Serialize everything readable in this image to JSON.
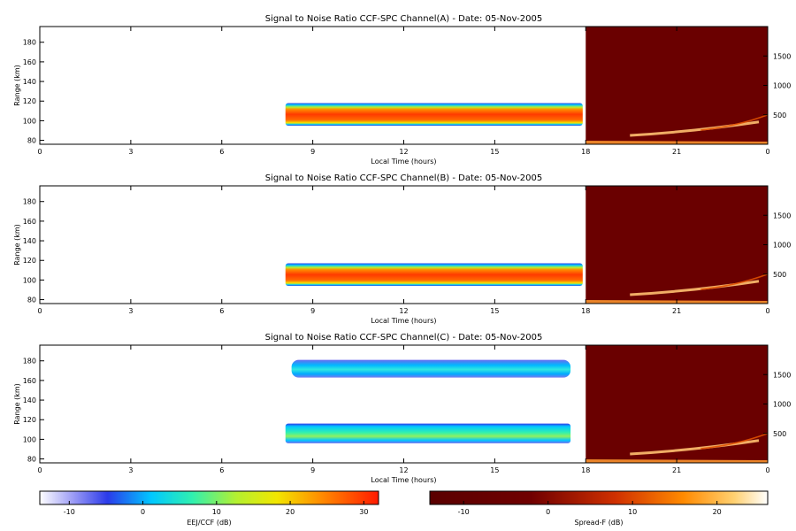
{
  "chart_data": [
    {
      "type": "heatmap",
      "title": "Signal to Noise Ratio CCF-SPC Channel(A) - Date: 05-Nov-2005",
      "xlabel": "Local Time (hours)",
      "ylabel": "Range (km)",
      "xlim": [
        0,
        24
      ],
      "xticks": [
        "0",
        "3",
        "6",
        "9",
        "12",
        "15",
        "18",
        "21",
        "0"
      ],
      "ylim": [
        76,
        196
      ],
      "yticks": [
        80,
        100,
        120,
        140,
        160,
        180
      ],
      "y2ticks": [
        500,
        1000,
        1500
      ],
      "ewj_echo": {
        "start_hour": 8.1,
        "end_hour": 17.9,
        "bottom_km": 95,
        "top_km": 118,
        "peak_snr_db": 25
      },
      "spreadf_panel": {
        "start_hour": 18,
        "end_hour": 24,
        "ylim_km": [
          0,
          2000
        ]
      }
    },
    {
      "type": "heatmap",
      "title": "Signal to Noise Ratio CCF-SPC Channel(B) - Date: 05-Nov-2005",
      "xlabel": "Local Time (hours)",
      "ylabel": "Range (km)",
      "xlim": [
        0,
        24
      ],
      "xticks": [
        "0",
        "3",
        "6",
        "9",
        "12",
        "15",
        "18",
        "21",
        "0"
      ],
      "ylim": [
        76,
        196
      ],
      "yticks": [
        80,
        100,
        120,
        140,
        160,
        180
      ],
      "y2ticks": [
        500,
        1000,
        1500
      ],
      "ewj_echo": {
        "start_hour": 8.1,
        "end_hour": 17.9,
        "bottom_km": 94,
        "top_km": 117,
        "peak_snr_db": 25
      },
      "spreadf_panel": {
        "start_hour": 18,
        "end_hour": 24,
        "ylim_km": [
          0,
          2000
        ]
      }
    },
    {
      "type": "heatmap",
      "title": "Signal to Noise Ratio CCF-SPC Channel(C) - Date: 05-Nov-2005",
      "xlabel": "Local Time (hours)",
      "ylabel": "Range (km)",
      "xlim": [
        0,
        24
      ],
      "xticks": [
        "0",
        "3",
        "6",
        "9",
        "12",
        "15",
        "18",
        "21",
        "0"
      ],
      "ylim": [
        76,
        196
      ],
      "yticks": [
        80,
        100,
        120,
        140,
        160,
        180
      ],
      "y2ticks": [
        500,
        1000,
        1500
      ],
      "ewj_echo": {
        "start_hour": 8.1,
        "end_hour": 17.5,
        "bottom_km": 96,
        "top_km": 116,
        "peak_snr_db": 8
      },
      "upper_echo": {
        "start_hour": 8.3,
        "end_hour": 17.5,
        "bottom_km": 163,
        "top_km": 181,
        "peak_snr_db": 0
      },
      "spreadf_panel": {
        "start_hour": 18,
        "end_hour": 24,
        "ylim_km": [
          0,
          2000
        ]
      }
    }
  ],
  "colorbars": [
    {
      "label": "EEJ/CCF (dB)",
      "range": [
        -14,
        32
      ],
      "ticks": [
        "-10",
        "0",
        "10",
        "20",
        "30"
      ],
      "tick_values": [
        -10,
        0,
        10,
        20,
        30
      ],
      "colormap": "jet"
    },
    {
      "label": "Spread-F (dB)",
      "range": [
        -14,
        26
      ],
      "ticks": [
        "-10",
        "0",
        "10",
        "20"
      ],
      "tick_values": [
        -10,
        0,
        10,
        20
      ],
      "colormap": "hot"
    }
  ]
}
